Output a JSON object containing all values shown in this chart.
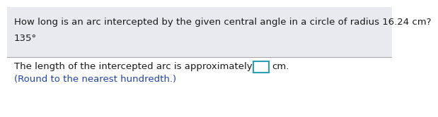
{
  "line1": "How long is an arc intercepted by the given central angle in a circle of radius 16.24 cm?",
  "line2": "135°",
  "line3_pre": "The length of the intercepted arc is approximately",
  "line3_post": "cm.",
  "line4": "(Round to the nearest hundredth.)",
  "background_color": "#ffffff",
  "top_bg_color": "#e8eaf0",
  "text_color": "#1a1a1a",
  "blue_color": "#2244aa",
  "box_border_color": "#2aa0b8",
  "font_size": 9.5,
  "divider_color": "#aaaaaa"
}
